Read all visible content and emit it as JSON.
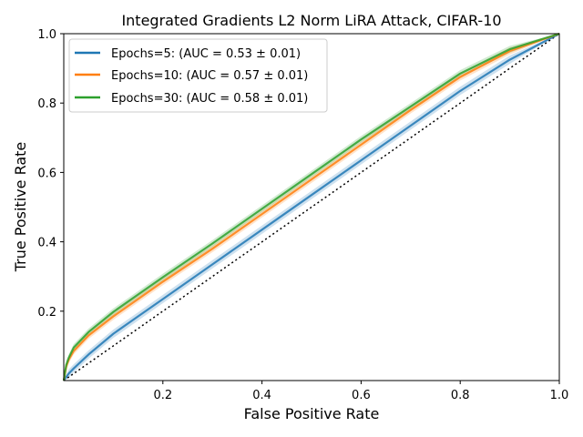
{
  "chart_data": {
    "type": "line",
    "title": "Integrated Gradients L2 Norm LiRA Attack, CIFAR-10",
    "xlabel": "False Positive Rate",
    "ylabel": "True Positive Rate",
    "xlim": [
      0,
      1
    ],
    "ylim": [
      0,
      1
    ],
    "grid": false,
    "legend_placement": "top-left",
    "xticks": [
      0.2,
      0.4,
      0.6,
      0.8,
      1.0
    ],
    "xtick_labels": [
      "0.2",
      "0.4",
      "0.6",
      "0.8",
      "1.0"
    ],
    "yticks": [
      0.2,
      0.4,
      0.6,
      0.8,
      1.0
    ],
    "ytick_labels": [
      "0.2",
      "0.4",
      "0.6",
      "0.8",
      "1.0"
    ],
    "diagonal": {
      "style": "dotted",
      "color": "#000000"
    },
    "series": [
      {
        "name": "Epochs=5: (AUC = 0.53 ± 0.01)",
        "color": "#1f77b4",
        "band": 0.012,
        "x": [
          0,
          0.01,
          0.02,
          0.05,
          0.1,
          0.15,
          0.2,
          0.3,
          0.4,
          0.5,
          0.6,
          0.7,
          0.8,
          0.9,
          1.0
        ],
        "y": [
          0,
          0.02,
          0.035,
          0.075,
          0.135,
          0.185,
          0.235,
          0.335,
          0.435,
          0.535,
          0.635,
          0.735,
          0.835,
          0.925,
          1.0
        ]
      },
      {
        "name": "Epochs=10: (AUC = 0.57 ± 0.01)",
        "color": "#ff7f0e",
        "band": 0.01,
        "x": [
          0,
          0.005,
          0.01,
          0.02,
          0.05,
          0.1,
          0.15,
          0.2,
          0.3,
          0.4,
          0.5,
          0.6,
          0.7,
          0.8,
          0.9,
          1.0
        ],
        "y": [
          0,
          0.04,
          0.06,
          0.085,
          0.13,
          0.185,
          0.235,
          0.285,
          0.38,
          0.48,
          0.58,
          0.68,
          0.78,
          0.875,
          0.95,
          1.0
        ]
      },
      {
        "name": "Epochs=30: (AUC = 0.58 ± 0.01)",
        "color": "#2ca02c",
        "band": 0.01,
        "x": [
          0,
          0.005,
          0.01,
          0.02,
          0.05,
          0.1,
          0.15,
          0.2,
          0.3,
          0.4,
          0.5,
          0.6,
          0.7,
          0.8,
          0.9,
          1.0
        ],
        "y": [
          0,
          0.045,
          0.065,
          0.095,
          0.14,
          0.198,
          0.248,
          0.298,
          0.395,
          0.495,
          0.595,
          0.695,
          0.79,
          0.885,
          0.955,
          1.0
        ]
      }
    ]
  }
}
